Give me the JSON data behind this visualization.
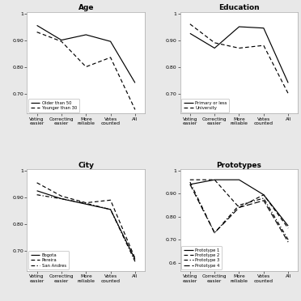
{
  "x_labels": [
    "Voting\neasier",
    "Correcting\neasier",
    "More\nreliable",
    "Votes\ncounted",
    "All"
  ],
  "x_positions": [
    0,
    1,
    2,
    3,
    4
  ],
  "age": {
    "title": "Age",
    "series": [
      {
        "label": "Older than 50",
        "values": [
          0.955,
          0.9,
          0.92,
          0.895,
          0.74
        ],
        "linestyle": "solid"
      },
      {
        "label": "Younger than 30",
        "values": [
          0.93,
          0.895,
          0.8,
          0.835,
          0.64
        ],
        "linestyle": "dashed"
      }
    ],
    "ylim": [
      0.625,
      1.005
    ],
    "yticks": [
      0.7,
      0.8,
      0.9,
      1.0
    ],
    "ytick_labels": [
      "0.70",
      "0.80",
      "0.90",
      "1"
    ]
  },
  "education": {
    "title": "Education",
    "series": [
      {
        "label": "Primary or less",
        "values": [
          0.925,
          0.87,
          0.95,
          0.945,
          0.74
        ],
        "linestyle": "solid"
      },
      {
        "label": "University",
        "values": [
          0.96,
          0.89,
          0.87,
          0.88,
          0.7
        ],
        "linestyle": "dashed"
      }
    ],
    "ylim": [
      0.625,
      1.005
    ],
    "yticks": [
      0.7,
      0.8,
      0.9,
      1.0
    ],
    "ytick_labels": [
      "0.70",
      "0.80",
      "0.90",
      "1"
    ]
  },
  "city": {
    "title": "City",
    "series": [
      {
        "label": "Bogota",
        "values": [
          0.925,
          0.895,
          0.875,
          0.855,
          0.668
        ],
        "linestyle": "solid"
      },
      {
        "label": "Pereira",
        "values": [
          0.955,
          0.905,
          0.88,
          0.89,
          0.672
        ],
        "linestyle": "dashed"
      },
      {
        "label": "San Andres",
        "values": [
          0.91,
          0.895,
          0.878,
          0.855,
          0.66
        ],
        "linestyle": "dashdot"
      }
    ],
    "ylim": [
      0.625,
      1.005
    ],
    "yticks": [
      0.7,
      0.8,
      0.9,
      1.0
    ],
    "ytick_labels": [
      "0.70",
      "0.80",
      "0.90",
      "1"
    ]
  },
  "prototypes": {
    "title": "Prototypes",
    "series": [
      {
        "label": "Prototype 1",
        "values": [
          0.94,
          0.96,
          0.96,
          0.895,
          0.76
        ],
        "linestyle": "solid"
      },
      {
        "label": "Prototype 2",
        "values": [
          0.96,
          0.96,
          0.84,
          0.895,
          0.75
        ],
        "linestyle": "dashed"
      },
      {
        "label": "Prototype 3",
        "values": [
          0.95,
          0.73,
          0.85,
          0.88,
          0.7
        ],
        "linestyle": "dashdot"
      },
      {
        "label": "Prototype 4",
        "values": [
          0.94,
          0.73,
          0.84,
          0.87,
          0.69
        ],
        "linestyle": "longdash"
      }
    ],
    "ylim": [
      0.565,
      1.005
    ],
    "yticks": [
      0.6,
      0.7,
      0.8,
      0.9,
      1.0
    ],
    "ytick_labels": [
      "0.6",
      "0.70",
      "0.80",
      "0.90",
      "1"
    ]
  },
  "bg_color": "#e8e8e8",
  "plot_bg": "#ffffff",
  "line_color": "#000000"
}
